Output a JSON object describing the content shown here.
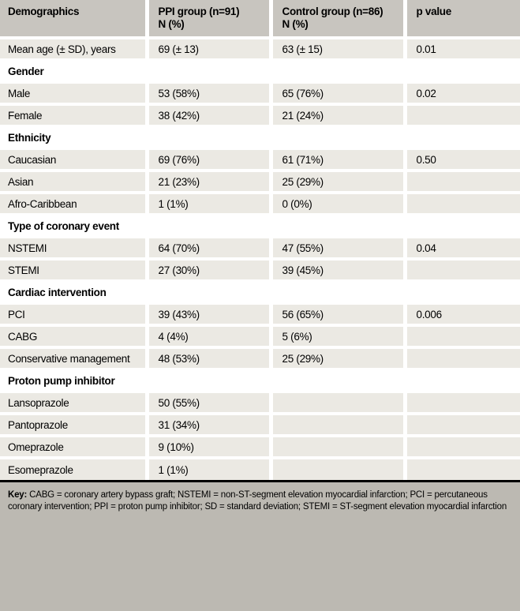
{
  "colors": {
    "header_bg": "#c8c5bf",
    "row_bg": "#ebe9e3",
    "section_bg": "#ffffff",
    "key_bg": "#bcb9b2",
    "rule": "#000000",
    "text": "#000000"
  },
  "table": {
    "header": [
      {
        "label": "Demographics",
        "sub": ""
      },
      {
        "label": "PPI group (n=91)",
        "sub": "N (%)"
      },
      {
        "label": "Control group (n=86)",
        "sub": "N (%)"
      },
      {
        "label": "p value",
        "sub": ""
      }
    ],
    "sections": [
      {
        "title": null,
        "rows": [
          [
            "Mean age (± SD), years",
            "69 (± 13)",
            "63 (± 15)",
            "0.01"
          ]
        ]
      },
      {
        "title": "Gender",
        "rows": [
          [
            "Male",
            "53 (58%)",
            "65 (76%)",
            "0.02"
          ],
          [
            "Female",
            "38 (42%)",
            "21 (24%)",
            ""
          ]
        ]
      },
      {
        "title": "Ethnicity",
        "rows": [
          [
            "Caucasian",
            "69 (76%)",
            "61 (71%)",
            "0.50"
          ],
          [
            "Asian",
            "21 (23%)",
            "25 (29%)",
            ""
          ],
          [
            "Afro-Caribbean",
            "1 (1%)",
            "0 (0%)",
            ""
          ]
        ]
      },
      {
        "title": "Type of coronary event",
        "rows": [
          [
            "NSTEMI",
            "64 (70%)",
            "47 (55%)",
            "0.04"
          ],
          [
            "STEMI",
            "27 (30%)",
            "39 (45%)",
            ""
          ]
        ]
      },
      {
        "title": "Cardiac intervention",
        "rows": [
          [
            "PCI",
            "39 (43%)",
            "56 (65%)",
            "0.006"
          ],
          [
            "CABG",
            "4 (4%)",
            "5 (6%)",
            ""
          ],
          [
            "Conservative management",
            "48 (53%)",
            "25 (29%)",
            ""
          ]
        ]
      },
      {
        "title": "Proton pump inhibitor",
        "rows": [
          [
            "Lansoprazole",
            "50 (55%)",
            "",
            ""
          ],
          [
            "Pantoprazole",
            "31 (34%)",
            "",
            ""
          ],
          [
            "Omeprazole",
            "9 (10%)",
            "",
            ""
          ],
          [
            "Esomeprazole",
            "1 (1%)",
            "",
            ""
          ]
        ]
      }
    ]
  },
  "key": {
    "label": "Key:",
    "text": "CABG = coronary artery bypass graft; NSTEMI = non-ST-segment elevation myocardial infarction; PCI = percutaneous coronary intervention; PPI = proton pump inhibitor; SD = standard deviation; STEMI = ST-segment elevation myocardial infarction"
  }
}
